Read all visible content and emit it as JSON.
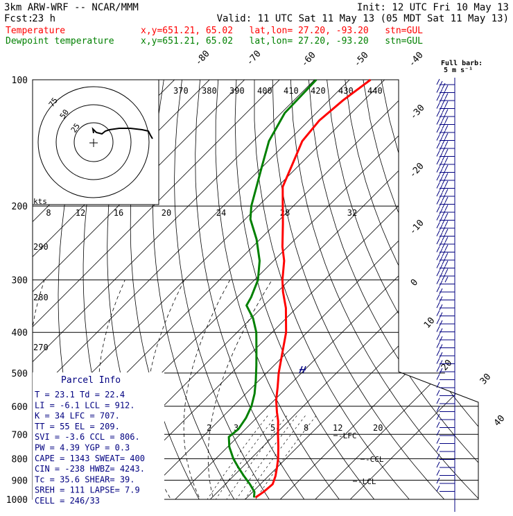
{
  "header": {
    "model": "3km ARW-WRF -- NCAR/MMM",
    "init": "Init: 12 UTC Fri 10 May 13",
    "fcst_label": "Fcst:",
    "fcst_value": "23 h",
    "valid": "Valid: 11 UTC Sat 11 May 13 (05 MDT Sat 11 May 13)",
    "temp_label": "Temperature",
    "temp_info": "x,y=651.21, 65.02   lat,lon= 27.20, -93.20   stn=GUL",
    "dew_label": "Dewpoint temperature",
    "dew_info": "x,y=651.21, 65.02   lat,lon= 27.20, -93.20   stn=GUL"
  },
  "colors": {
    "temperature": "#ff0000",
    "dewpoint": "#008000",
    "header_black": "#000000",
    "barbs": "#000080",
    "parcel_info": "#000080"
  },
  "full_barb": {
    "line1": "Full barb:",
    "line2": "5 m s⁻¹"
  },
  "hodograph": {
    "kts_label": "kts",
    "ring_labels": [
      "25",
      "50",
      "75"
    ]
  },
  "parcel_info": {
    "title": "Parcel Info",
    "rows": [
      "T   =   23.1  Td =  22.4",
      "LI  =   -6.1  LCL =  912.",
      "K   =     34  LFC =  707.",
      "TT  =     55  EL  =  209.",
      "SVI =   -3.6  CCL =  806.",
      "PW  =   4.39  YGP =   0.3",
      "CAPE =  1343  SWEAT=  400",
      "CIN  =  -238  HWBZ= 4243.",
      "Tc  =   35.6  SHEAR=  39.",
      "SREH =   111  LAPSE=  7.9",
      "CELL = 246/33"
    ]
  },
  "chart_data": {
    "type": "line",
    "title": "",
    "xlabel": "",
    "ylabel": "",
    "y_scale": "log",
    "y_unit": "hPa",
    "ylim": [
      1000,
      100
    ],
    "pressure_ticks": [
      "100",
      "200",
      "300",
      "400",
      "500",
      "600",
      "700",
      "800",
      "900",
      "1000"
    ],
    "isotherm_labels": [
      "-80",
      "-70",
      "-60",
      "-50",
      "-40",
      "-30",
      "-20",
      "-10",
      "0",
      "10",
      "20",
      "30",
      "40"
    ],
    "theta_labels": [
      "370",
      "380",
      "390",
      "400",
      "410",
      "420",
      "430",
      "440",
      "290",
      "280",
      "270"
    ],
    "mixing_ratio_labels": [
      "2",
      "3",
      "5",
      "8",
      "12",
      "20"
    ],
    "hodograph_speed_labels": [
      "8",
      "12",
      "16",
      "20",
      "24",
      "28",
      "32"
    ],
    "level_markers": [
      "LFC",
      "CCL",
      "LCL"
    ],
    "series": [
      {
        "name": "Temperature",
        "values": [
          {
            "p": 990,
            "t": 22.4
          },
          {
            "p": 960,
            "t": 23.1
          },
          {
            "p": 920,
            "t": 23.5
          },
          {
            "p": 880,
            "t": 22.0
          },
          {
            "p": 840,
            "t": 20.0
          },
          {
            "p": 800,
            "t": 17.8
          },
          {
            "p": 750,
            "t": 14.5
          },
          {
            "p": 700,
            "t": 10.8
          },
          {
            "p": 650,
            "t": 7.0
          },
          {
            "p": 620,
            "t": 4.2
          },
          {
            "p": 580,
            "t": 0.5
          },
          {
            "p": 540,
            "t": -2.8
          },
          {
            "p": 500,
            "t": -6.5
          },
          {
            "p": 450,
            "t": -11.0
          },
          {
            "p": 400,
            "t": -16.0
          },
          {
            "p": 350,
            "t": -23.0
          },
          {
            "p": 320,
            "t": -28.5
          },
          {
            "p": 300,
            "t": -32.0
          },
          {
            "p": 270,
            "t": -37.0
          },
          {
            "p": 250,
            "t": -41.5
          },
          {
            "p": 220,
            "t": -48.0
          },
          {
            "p": 200,
            "t": -53.0
          },
          {
            "p": 180,
            "t": -58.5
          },
          {
            "p": 160,
            "t": -62.0
          },
          {
            "p": 140,
            "t": -66.0
          },
          {
            "p": 125,
            "t": -67.0
          },
          {
            "p": 112,
            "t": -66.0
          },
          {
            "p": 100,
            "t": -64.0
          }
        ]
      },
      {
        "name": "Dewpoint temperature",
        "values": [
          {
            "p": 990,
            "t": 22.0
          },
          {
            "p": 960,
            "t": 20.5
          },
          {
            "p": 920,
            "t": 17.0
          },
          {
            "p": 880,
            "t": 13.0
          },
          {
            "p": 840,
            "t": 9.0
          },
          {
            "p": 800,
            "t": 5.0
          },
          {
            "p": 750,
            "t": 0.5
          },
          {
            "p": 710,
            "t": -2.5
          },
          {
            "p": 680,
            "t": -2.0
          },
          {
            "p": 640,
            "t": -3.0
          },
          {
            "p": 600,
            "t": -4.8
          },
          {
            "p": 560,
            "t": -7.5
          },
          {
            "p": 520,
            "t": -11.0
          },
          {
            "p": 480,
            "t": -15.0
          },
          {
            "p": 440,
            "t": -19.5
          },
          {
            "p": 400,
            "t": -24.5
          },
          {
            "p": 370,
            "t": -29.5
          },
          {
            "p": 345,
            "t": -35.0
          },
          {
            "p": 330,
            "t": -36.0
          },
          {
            "p": 300,
            "t": -39.0
          },
          {
            "p": 270,
            "t": -44.0
          },
          {
            "p": 240,
            "t": -51.0
          },
          {
            "p": 215,
            "t": -58.5
          },
          {
            "p": 200,
            "t": -62.0
          },
          {
            "p": 180,
            "t": -66.0
          },
          {
            "p": 160,
            "t": -70.5
          },
          {
            "p": 140,
            "t": -75.5
          },
          {
            "p": 120,
            "t": -79.0
          },
          {
            "p": 100,
            "t": -79.5
          }
        ]
      }
    ]
  }
}
